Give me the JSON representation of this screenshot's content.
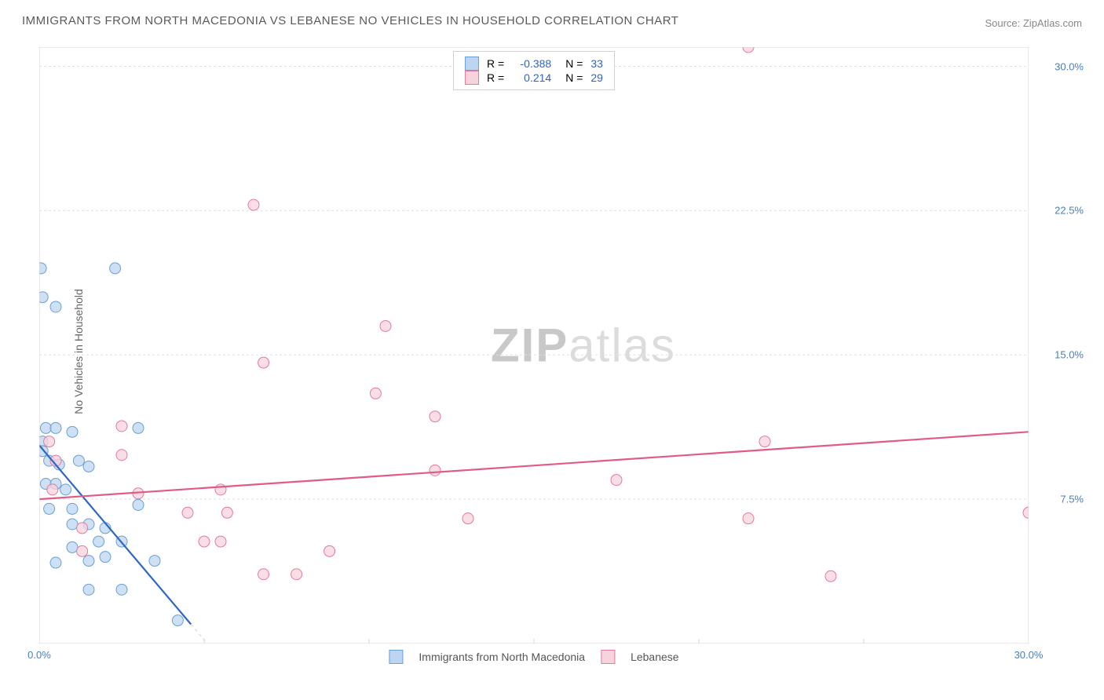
{
  "chart": {
    "type": "scatter",
    "title": "IMMIGRANTS FROM NORTH MACEDONIA VS LEBANESE NO VEHICLES IN HOUSEHOLD CORRELATION CHART",
    "source": "Source: ZipAtlas.com",
    "watermark_zip": "ZIP",
    "watermark_atlas": "atlas",
    "ylabel": "No Vehicles in Household",
    "xlim": [
      0,
      30
    ],
    "ylim": [
      0,
      31
    ],
    "yticks": [
      7.5,
      15.0,
      22.5,
      30.0
    ],
    "ytick_labels": [
      "7.5%",
      "15.0%",
      "22.5%",
      "30.0%"
    ],
    "xticks": [
      0,
      30
    ],
    "xtick_labels": [
      "0.0%",
      "30.0%"
    ],
    "x_minor": [
      5,
      10,
      15,
      20,
      25
    ],
    "grid_color": "#e0e0e0",
    "axis_color": "#d5d5d5",
    "background_color": "#ffffff",
    "title_fontsize": 15,
    "label_fontsize": 14,
    "tick_color": "#4a7ebb",
    "marker_radius": 7,
    "series": [
      {
        "name": "Immigrants from North Macedonia",
        "color_fill": "#bcd5f0",
        "color_stroke": "#6a9fd8",
        "line_color": "#2e66c4",
        "R": -0.388,
        "N": 33,
        "points": [
          [
            0.05,
            19.5
          ],
          [
            0.1,
            18.0
          ],
          [
            2.3,
            19.5
          ],
          [
            0.5,
            17.5
          ],
          [
            0.2,
            11.2
          ],
          [
            0.5,
            11.2
          ],
          [
            1.0,
            11.0
          ],
          [
            3.0,
            11.2
          ],
          [
            0.1,
            10.5
          ],
          [
            0.1,
            10.0
          ],
          [
            0.3,
            9.5
          ],
          [
            0.6,
            9.3
          ],
          [
            1.2,
            9.5
          ],
          [
            1.5,
            9.2
          ],
          [
            0.2,
            8.3
          ],
          [
            0.5,
            8.3
          ],
          [
            0.8,
            8.0
          ],
          [
            0.3,
            7.0
          ],
          [
            1.0,
            7.0
          ],
          [
            3.0,
            7.2
          ],
          [
            1.0,
            6.2
          ],
          [
            1.5,
            6.2
          ],
          [
            2.0,
            6.0
          ],
          [
            1.0,
            5.0
          ],
          [
            1.8,
            5.3
          ],
          [
            2.5,
            5.3
          ],
          [
            0.5,
            4.2
          ],
          [
            1.5,
            4.3
          ],
          [
            2.0,
            4.5
          ],
          [
            3.5,
            4.3
          ],
          [
            1.5,
            2.8
          ],
          [
            2.5,
            2.8
          ],
          [
            4.2,
            1.2
          ]
        ],
        "trend": {
          "x1": 0,
          "y1": 10.3,
          "x2": 4.6,
          "y2": 1.0
        }
      },
      {
        "name": "Lebanese",
        "color_fill": "#f7d3dd",
        "color_stroke": "#e47a9a",
        "line_color": "#e05b86",
        "R": 0.214,
        "N": 29,
        "points": [
          [
            21.5,
            31.0
          ],
          [
            6.5,
            22.8
          ],
          [
            10.5,
            16.5
          ],
          [
            6.8,
            14.6
          ],
          [
            10.2,
            13.0
          ],
          [
            2.5,
            11.3
          ],
          [
            12.0,
            11.8
          ],
          [
            0.3,
            10.5
          ],
          [
            0.5,
            9.5
          ],
          [
            22.0,
            10.5
          ],
          [
            12.0,
            9.0
          ],
          [
            17.5,
            8.5
          ],
          [
            0.4,
            8.0
          ],
          [
            5.5,
            8.0
          ],
          [
            3.0,
            7.8
          ],
          [
            4.5,
            6.8
          ],
          [
            5.7,
            6.8
          ],
          [
            13.0,
            6.5
          ],
          [
            21.5,
            6.5
          ],
          [
            30.0,
            6.8
          ],
          [
            5.0,
            5.3
          ],
          [
            5.5,
            5.3
          ],
          [
            6.8,
            3.6
          ],
          [
            7.8,
            3.6
          ],
          [
            8.8,
            4.8
          ],
          [
            24.0,
            3.5
          ],
          [
            1.3,
            4.8
          ],
          [
            1.3,
            6.0
          ],
          [
            2.5,
            9.8
          ]
        ],
        "trend": {
          "x1": 0,
          "y1": 7.5,
          "x2": 30,
          "y2": 11.0
        }
      }
    ],
    "legend_top": {
      "R_label": "R =",
      "N_label": "N ="
    },
    "legend_bottom": [
      {
        "label": "Immigrants from North Macedonia",
        "fill": "#bcd5f0",
        "stroke": "#6a9fd8"
      },
      {
        "label": "Lebanese",
        "fill": "#f7d3dd",
        "stroke": "#e47a9a"
      }
    ]
  }
}
